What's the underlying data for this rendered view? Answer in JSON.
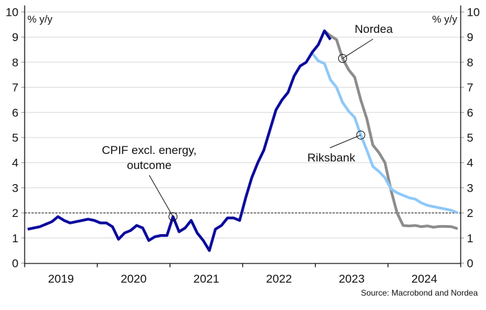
{
  "chart_data": {
    "type": "line",
    "ylabel_left": "% y/y",
    "ylabel_right": "% y/y",
    "ylim": [
      0,
      10
    ],
    "yticks": [
      0,
      1,
      2,
      3,
      4,
      5,
      6,
      7,
      8,
      9,
      10
    ],
    "xticks": [
      "2019",
      "2020",
      "2021",
      "2022",
      "2023",
      "2024"
    ],
    "reference_line": 2,
    "grid": true,
    "source": "Source: Macrobond and Nordea",
    "series": [
      {
        "name": "CPIF excl. energy, outcome",
        "color": "#0a0a9c",
        "start": "2019-01",
        "values": [
          1.35,
          1.4,
          1.45,
          1.55,
          1.65,
          1.85,
          1.7,
          1.6,
          1.65,
          1.7,
          1.75,
          1.7,
          1.6,
          1.6,
          1.45,
          0.95,
          1.2,
          1.3,
          1.5,
          1.4,
          0.9,
          1.05,
          1.1,
          1.1,
          1.85,
          1.25,
          1.4,
          1.7,
          1.2,
          0.9,
          0.5,
          1.35,
          1.5,
          1.8,
          1.8,
          1.7,
          2.6,
          3.4,
          4.0,
          4.5,
          5.3,
          6.1,
          6.5,
          6.8,
          7.45,
          7.85,
          8.0,
          8.4,
          8.7,
          9.25,
          8.9
        ]
      },
      {
        "name": "Riksbank",
        "color": "#8ec8f8",
        "start": "2022-12",
        "values": [
          8.35,
          8.05,
          7.95,
          7.3,
          7.0,
          6.4,
          6.05,
          5.8,
          5.1,
          4.5,
          3.85,
          3.65,
          3.4,
          2.95,
          2.8,
          2.7,
          2.6,
          2.55,
          2.4,
          2.3,
          2.25,
          2.2,
          2.15,
          2.1,
          2.0
        ]
      },
      {
        "name": "Nordea",
        "color": "#8c8c8c",
        "start": "2023-02",
        "values": [
          9.25,
          9.05,
          8.9,
          8.15,
          7.7,
          7.4,
          6.5,
          5.75,
          4.7,
          4.4,
          4.0,
          2.9,
          2.0,
          1.5,
          1.48,
          1.5,
          1.45,
          1.48,
          1.43,
          1.46,
          1.46,
          1.45,
          1.37
        ]
      }
    ],
    "annotations": [
      {
        "series": "CPIF excl. energy, outcome",
        "lines": [
          "CPIF excl. energy,",
          "outcome"
        ]
      },
      {
        "series": "Nordea",
        "lines": [
          "Nordea"
        ]
      },
      {
        "series": "Riksbank",
        "lines": [
          "Riksbank"
        ]
      }
    ]
  }
}
